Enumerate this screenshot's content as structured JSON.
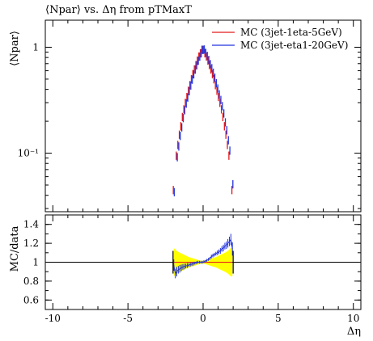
{
  "chart_data": [
    {
      "type": "line",
      "title": "⟨N_par⟩ vs. Δη from pTMaxT",
      "ylabel": "⟨N_par⟩",
      "xlabel": "",
      "yscale": "log",
      "xlim": [
        -10.5,
        10.5
      ],
      "ylim": [
        0.028,
        1.8
      ],
      "yticks": [
        {
          "value": 1,
          "label": "1"
        },
        {
          "value": 0.1,
          "label": "10⁻¹"
        }
      ],
      "legend_position": "top-right",
      "series": [
        {
          "name": "MC (3jet-1eta-5GeV)",
          "color": "#e31a1c",
          "x": [
            -1.95,
            -1.75,
            -1.65,
            -1.55,
            -1.45,
            -1.35,
            -1.25,
            -1.15,
            -1.05,
            -0.95,
            -0.85,
            -0.75,
            -0.65,
            -0.55,
            -0.45,
            -0.35,
            -0.25,
            -0.15,
            -0.05,
            0.05,
            0.15,
            0.25,
            0.35,
            0.45,
            0.55,
            0.65,
            0.75,
            0.85,
            0.95,
            1.05,
            1.15,
            1.25,
            1.35,
            1.45,
            1.55,
            1.65,
            1.75,
            1.95
          ],
          "values": [
            0.045,
            0.095,
            0.12,
            0.15,
            0.18,
            0.22,
            0.26,
            0.3,
            0.34,
            0.39,
            0.44,
            0.5,
            0.56,
            0.62,
            0.68,
            0.75,
            0.82,
            0.88,
            0.95,
            0.95,
            0.88,
            0.82,
            0.75,
            0.68,
            0.62,
            0.56,
            0.5,
            0.44,
            0.39,
            0.34,
            0.3,
            0.26,
            0.22,
            0.18,
            0.15,
            0.12,
            0.095,
            0.045
          ]
        },
        {
          "name": "MC (3jet-eta1-20GeV)",
          "color": "#2233dd",
          "x": [
            -1.95,
            -1.75,
            -1.65,
            -1.55,
            -1.45,
            -1.35,
            -1.25,
            -1.15,
            -1.05,
            -0.95,
            -0.85,
            -0.75,
            -0.65,
            -0.55,
            -0.45,
            -0.35,
            -0.25,
            -0.15,
            -0.05,
            0.05,
            0.15,
            0.25,
            0.35,
            0.45,
            0.55,
            0.65,
            0.75,
            0.85,
            0.95,
            1.05,
            1.15,
            1.25,
            1.35,
            1.45,
            1.55,
            1.65,
            1.75,
            1.95
          ],
          "values": [
            0.043,
            0.092,
            0.116,
            0.146,
            0.176,
            0.215,
            0.255,
            0.295,
            0.336,
            0.386,
            0.437,
            0.496,
            0.557,
            0.618,
            0.678,
            0.749,
            0.819,
            0.879,
            0.949,
            0.955,
            0.888,
            0.83,
            0.762,
            0.695,
            0.636,
            0.577,
            0.518,
            0.459,
            0.409,
            0.36,
            0.319,
            0.279,
            0.238,
            0.196,
            0.165,
            0.133,
            0.106,
            0.051
          ]
        }
      ]
    },
    {
      "type": "line",
      "title": "",
      "ylabel": "MC/data",
      "xlabel": "Δη",
      "xlim": [
        -10.5,
        10.5
      ],
      "ylim": [
        0.5,
        1.5
      ],
      "xticks": [
        {
          "value": -10,
          "label": "-10"
        },
        {
          "value": -5,
          "label": "-5"
        },
        {
          "value": 0,
          "label": "0"
        },
        {
          "value": 5,
          "label": "5"
        },
        {
          "value": 10,
          "label": "10"
        }
      ],
      "yticks": [
        {
          "value": 0.6,
          "label": "0.6"
        },
        {
          "value": 0.8,
          "label": "0.8"
        },
        {
          "value": 1.0,
          "label": "1"
        },
        {
          "value": 1.2,
          "label": "1.2"
        },
        {
          "value": 1.4,
          "label": "1.4"
        }
      ],
      "band_color": "#ffff00",
      "band": {
        "x": [
          -1.95,
          -1.75,
          -1.55,
          -1.35,
          -1.15,
          -0.95,
          -0.75,
          -0.55,
          -0.35,
          -0.15,
          0.05,
          0.25,
          0.45,
          0.65,
          0.85,
          1.05,
          1.25,
          1.45,
          1.65,
          1.85,
          1.95
        ],
        "half_width": [
          0.15,
          0.12,
          0.1,
          0.085,
          0.07,
          0.055,
          0.045,
          0.035,
          0.025,
          0.015,
          0.015,
          0.025,
          0.035,
          0.045,
          0.055,
          0.07,
          0.085,
          0.1,
          0.12,
          0.15,
          0.15
        ]
      },
      "series": [
        {
          "name": "MC (3jet-1eta-5GeV)",
          "color": "#e31a1c",
          "x": [
            -1.95,
            -1.75,
            -1.55,
            -1.35,
            -1.15,
            -0.95,
            -0.75,
            -0.55,
            -0.35,
            -0.15,
            0.05,
            0.25,
            0.45,
            0.65,
            0.85,
            1.05,
            1.25,
            1.45,
            1.65,
            1.85,
            1.95
          ],
          "values": [
            1,
            1,
            1,
            1,
            1,
            1,
            1,
            1,
            1,
            1,
            1,
            1,
            1,
            1,
            1,
            1,
            1,
            1,
            1,
            1,
            1
          ]
        },
        {
          "name": "MC (3jet-eta1-20GeV)",
          "color": "#2233dd",
          "x": [
            -1.95,
            -1.85,
            -1.75,
            -1.65,
            -1.55,
            -1.45,
            -1.35,
            -1.25,
            -1.15,
            -1.05,
            -0.95,
            -0.85,
            -0.75,
            -0.65,
            -0.55,
            -0.45,
            -0.35,
            -0.25,
            -0.15,
            -0.05,
            0.05,
            0.15,
            0.25,
            0.35,
            0.45,
            0.55,
            0.65,
            0.75,
            0.85,
            0.95,
            1.05,
            1.15,
            1.25,
            1.35,
            1.45,
            1.55,
            1.65,
            1.75,
            1.85,
            1.95
          ],
          "values": [
            0.97,
            0.88,
            0.9,
            0.92,
            0.93,
            0.94,
            0.95,
            0.955,
            0.96,
            0.965,
            0.97,
            0.975,
            0.98,
            0.985,
            0.99,
            0.995,
            1.0,
            1.0,
            1.0,
            1.0,
            1.005,
            1.01,
            1.02,
            1.03,
            1.04,
            1.06,
            1.07,
            1.08,
            1.09,
            1.1,
            1.11,
            1.12,
            1.14,
            1.15,
            1.17,
            1.18,
            1.2,
            1.22,
            1.24,
            1.14
          ],
          "errors": [
            0.06,
            0.05,
            0.05,
            0.04,
            0.04,
            0.035,
            0.03,
            0.03,
            0.025,
            0.025,
            0.02,
            0.02,
            0.02,
            0.02,
            0.015,
            0.015,
            0.015,
            0.015,
            0.015,
            0.015,
            0.015,
            0.015,
            0.015,
            0.015,
            0.015,
            0.02,
            0.02,
            0.02,
            0.02,
            0.025,
            0.025,
            0.03,
            0.03,
            0.035,
            0.035,
            0.04,
            0.045,
            0.05,
            0.06,
            0.07
          ]
        }
      ]
    }
  ]
}
